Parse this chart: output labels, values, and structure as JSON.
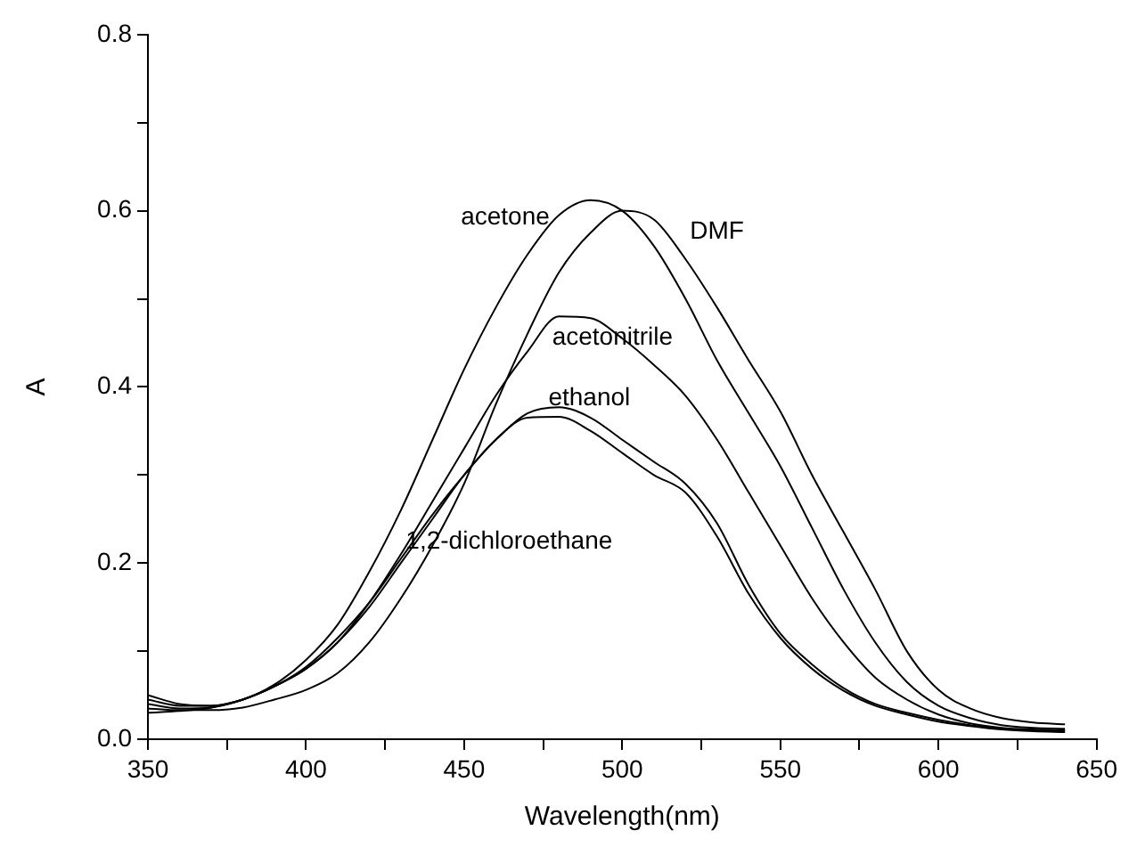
{
  "chart_data": {
    "type": "line",
    "xlabel": "Wavelength(nm)",
    "ylabel": "A",
    "x": [
      350,
      360,
      370,
      380,
      390,
      400,
      410,
      420,
      430,
      440,
      450,
      460,
      470,
      480,
      490,
      500,
      510,
      520,
      530,
      540,
      550,
      560,
      570,
      580,
      590,
      600,
      610,
      620,
      630,
      640
    ],
    "series": [
      {
        "name": "acetone",
        "color": "#000000",
        "values": [
          0.045,
          0.038,
          0.038,
          0.045,
          0.062,
          0.09,
          0.13,
          0.19,
          0.26,
          0.34,
          0.42,
          0.49,
          0.55,
          0.595,
          0.612,
          0.6,
          0.56,
          0.5,
          0.43,
          0.37,
          0.31,
          0.24,
          0.17,
          0.11,
          0.065,
          0.038,
          0.024,
          0.016,
          0.013,
          0.012
        ]
      },
      {
        "name": "DMF",
        "color": "#000000",
        "values": [
          0.035,
          0.033,
          0.033,
          0.036,
          0.045,
          0.056,
          0.075,
          0.11,
          0.16,
          0.22,
          0.29,
          0.38,
          0.46,
          0.53,
          0.575,
          0.6,
          0.59,
          0.545,
          0.49,
          0.43,
          0.372,
          0.3,
          0.235,
          0.17,
          0.1,
          0.056,
          0.035,
          0.024,
          0.019,
          0.017
        ]
      },
      {
        "name": "acetonitrile",
        "color": "#000000",
        "values": [
          0.04,
          0.035,
          0.036,
          0.045,
          0.06,
          0.08,
          0.11,
          0.155,
          0.21,
          0.27,
          0.33,
          0.39,
          0.44,
          0.48,
          0.478,
          0.455,
          0.425,
          0.39,
          0.34,
          0.28,
          0.22,
          0.16,
          0.11,
          0.07,
          0.045,
          0.028,
          0.018,
          0.013,
          0.011,
          0.01
        ]
      },
      {
        "name": "ethanol",
        "color": "#000000",
        "values": [
          0.05,
          0.04,
          0.038,
          0.045,
          0.06,
          0.08,
          0.11,
          0.15,
          0.2,
          0.25,
          0.3,
          0.34,
          0.37,
          0.377,
          0.365,
          0.34,
          0.315,
          0.29,
          0.245,
          0.175,
          0.12,
          0.085,
          0.058,
          0.04,
          0.03,
          0.022,
          0.016,
          0.012,
          0.01,
          0.009
        ]
      },
      {
        "name": "1,2-dichloroethane",
        "color": "#000000",
        "values": [
          0.03,
          0.032,
          0.036,
          0.045,
          0.06,
          0.082,
          0.115,
          0.155,
          0.205,
          0.255,
          0.3,
          0.34,
          0.365,
          0.366,
          0.35,
          0.325,
          0.3,
          0.28,
          0.23,
          0.165,
          0.115,
          0.08,
          0.055,
          0.038,
          0.028,
          0.02,
          0.015,
          0.011,
          0.009,
          0.008
        ]
      }
    ],
    "xlim": [
      350,
      650
    ],
    "xticks": [
      350,
      {
        "value": 375,
        "label": null
      },
      400,
      {
        "value": 425,
        "label": null
      },
      450,
      {
        "value": 475,
        "label": null
      },
      500,
      {
        "value": 525,
        "label": null
      },
      550,
      {
        "value": 575,
        "label": null
      },
      600,
      {
        "value": 625,
        "label": null
      },
      650
    ],
    "ylim": [
      0,
      0.8
    ],
    "yticks": [
      {
        "value": 0,
        "label": "0.0"
      },
      {
        "value": 0.1,
        "label": null
      },
      0.2,
      {
        "value": 0.3,
        "label": null
      },
      0.4,
      {
        "value": 0.5,
        "label": null
      },
      0.6,
      {
        "value": 0.7,
        "label": null
      },
      0.8
    ],
    "grid": false,
    "legend": false,
    "marker": "none",
    "line_style": "solid"
  }
}
